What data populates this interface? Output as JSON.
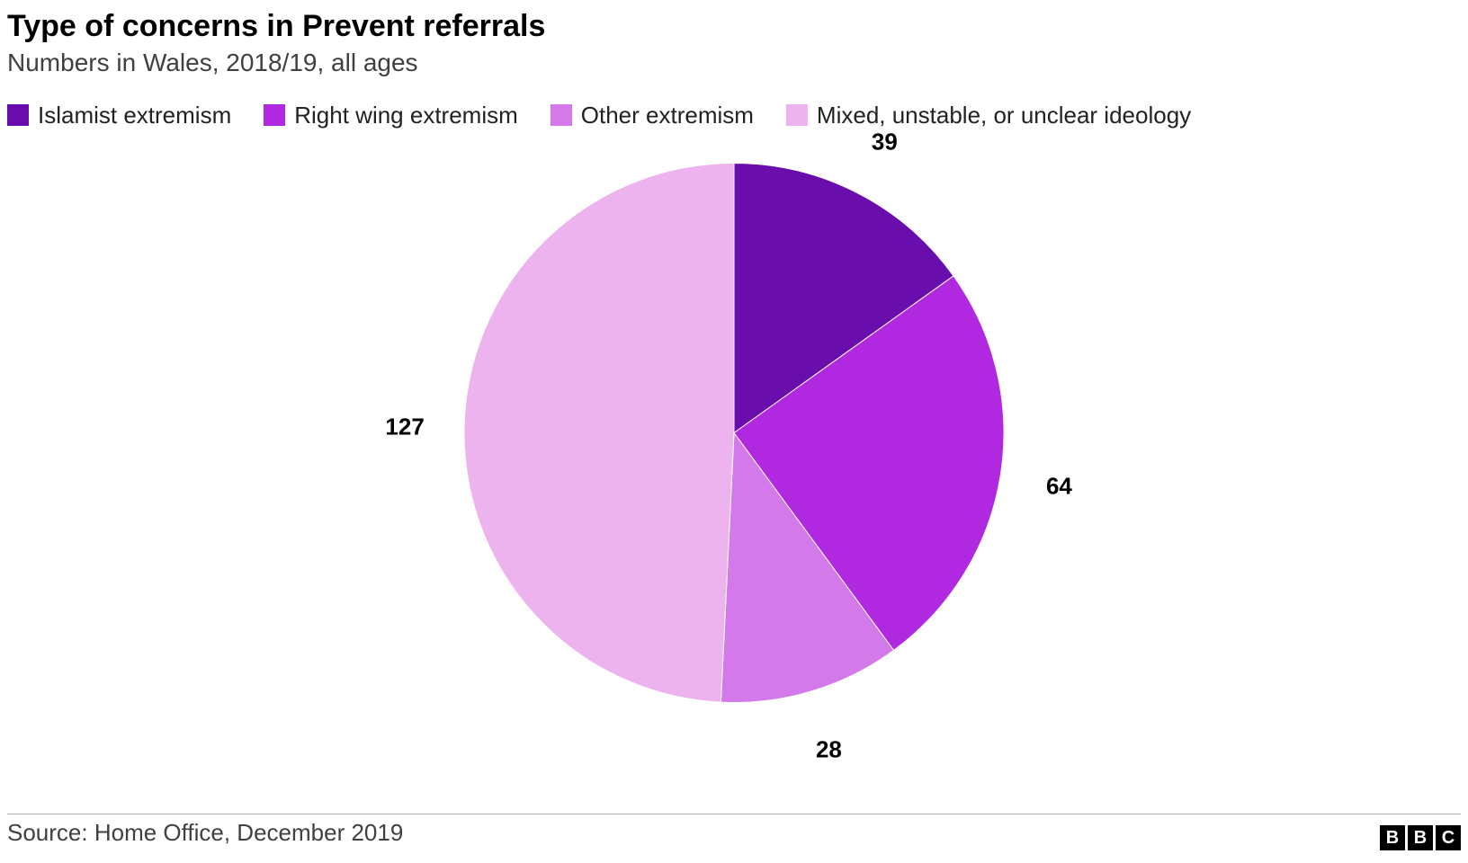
{
  "chart": {
    "type": "pie",
    "title": "Type of concerns in Prevent referrals",
    "subtitle": "Numbers in Wales, 2018/19, all ages",
    "title_fontsize": 34,
    "subtitle_fontsize": 28,
    "legend_fontsize": 26,
    "data_label_fontsize": 26,
    "source_fontsize": 26,
    "background_color": "#ffffff",
    "pie_radius": 300,
    "pie_border_color": "#ffffff",
    "pie_border_width": 1,
    "slices": [
      {
        "label": "Islamist extremism",
        "value": 39,
        "color": "#6a0dad"
      },
      {
        "label": "Right wing extremism",
        "value": 64,
        "color": "#b029e0"
      },
      {
        "label": "Other extremism",
        "value": 28,
        "color": "#d479ea"
      },
      {
        "label": "Mixed, unstable, or unclear ideology",
        "value": 127,
        "color": "#ecb3ee"
      }
    ],
    "data_label_offset": 1.22
  },
  "source": "Source: Home Office, December 2019",
  "logo": {
    "letters": [
      "B",
      "B",
      "C"
    ]
  }
}
